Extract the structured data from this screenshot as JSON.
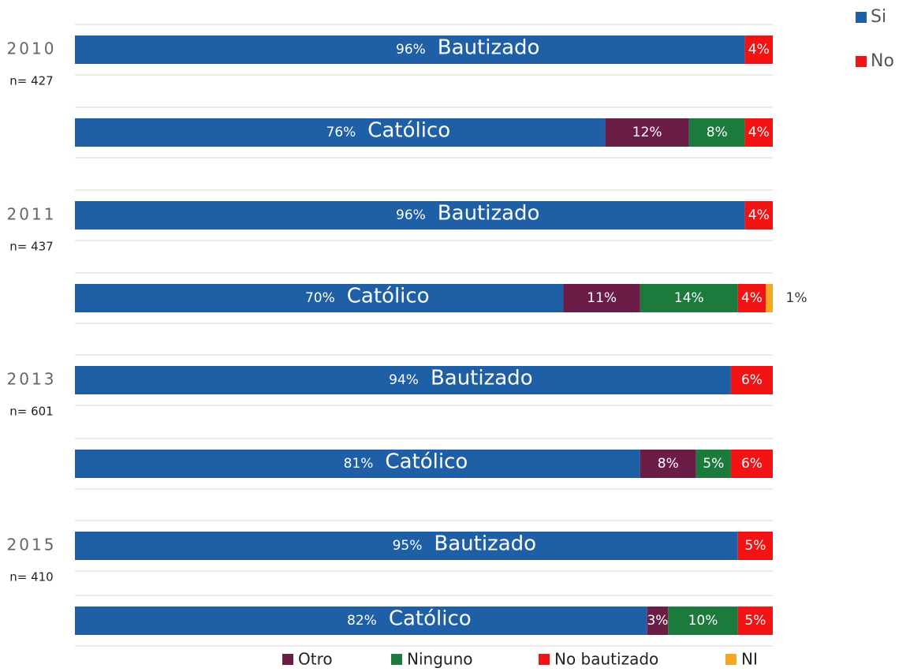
{
  "chart_data": {
    "type": "bar",
    "orientation": "horizontal",
    "stacked": true,
    "xlim": [
      0,
      100
    ],
    "groups": [
      {
        "year": "2010",
        "n": "n= 427"
      },
      {
        "year": "2011",
        "n": "n= 437"
      },
      {
        "year": "2013",
        "n": "n= 601"
      },
      {
        "year": "2015",
        "n": "n= 410"
      }
    ],
    "rows": [
      {
        "name": "Bautizado",
        "values": [
          96,
          4
        ],
        "value_labels": [
          "96%",
          "4%"
        ],
        "colors": [
          "#1f5fa6",
          "#f21414"
        ]
      },
      {
        "name": "Católico",
        "values": [
          76,
          12,
          8,
          4
        ],
        "value_labels": [
          "76%",
          "12%",
          "8%",
          "4%"
        ],
        "colors": [
          "#1f5fa6",
          "#6b1d48",
          "#1b7a3c",
          "#f21414"
        ]
      },
      {
        "name": "Bautizado",
        "values": [
          96,
          4
        ],
        "value_labels": [
          "96%",
          "4%"
        ],
        "colors": [
          "#1f5fa6",
          "#f21414"
        ]
      },
      {
        "name": "Católico",
        "values": [
          70,
          11,
          14,
          4,
          1
        ],
        "value_labels": [
          "70%",
          "11%",
          "14%",
          "4%",
          "1%"
        ],
        "colors": [
          "#1f5fa6",
          "#6b1d48",
          "#1b7a3c",
          "#f21414",
          "#f5a623"
        ]
      },
      {
        "name": "Bautizado",
        "values": [
          94,
          6
        ],
        "value_labels": [
          "94%",
          "6%"
        ],
        "colors": [
          "#1f5fa6",
          "#f21414"
        ]
      },
      {
        "name": "Católico",
        "values": [
          81,
          8,
          5,
          6
        ],
        "value_labels": [
          "81%",
          "8%",
          "5%",
          "6%"
        ],
        "colors": [
          "#1f5fa6",
          "#6b1d48",
          "#1b7a3c",
          "#f21414"
        ]
      },
      {
        "name": "Bautizado",
        "values": [
          95,
          5
        ],
        "value_labels": [
          "95%",
          "5%"
        ],
        "colors": [
          "#1f5fa6",
          "#f21414"
        ]
      },
      {
        "name": "Católico",
        "values": [
          82,
          3,
          10,
          5
        ],
        "value_labels": [
          "82%",
          "3%",
          "10%",
          "5%"
        ],
        "colors": [
          "#1f5fa6",
          "#6b1d48",
          "#1b7a3c",
          "#f21414"
        ]
      }
    ],
    "legend_top": [
      {
        "name": "Si",
        "color": "#1f5fa6"
      },
      {
        "name": "No",
        "color": "#f21414"
      }
    ],
    "legend_bottom": [
      {
        "name": "Otro",
        "color": "#6b1d48"
      },
      {
        "name": "Ninguno",
        "color": "#1b7a3c"
      },
      {
        "name": "No bautizado",
        "color": "#f21414"
      },
      {
        "name": "NI",
        "color": "#f5a623"
      }
    ]
  }
}
